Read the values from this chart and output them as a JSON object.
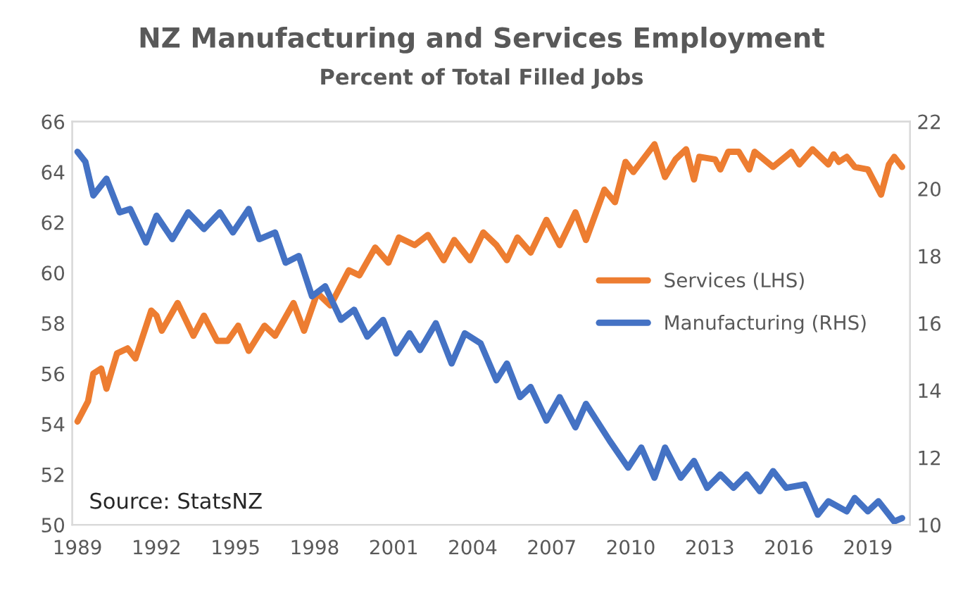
{
  "chart_data": {
    "type": "line",
    "title": "NZ Manufacturing and Services Employment",
    "subtitle": "Percent of Total Filled Jobs",
    "annotations": [
      "Source: StatsNZ"
    ],
    "xlim": [
      1988.8,
      2020.6
    ],
    "xticks": [
      1989,
      1992,
      1995,
      1998,
      2001,
      2004,
      2007,
      2010,
      2013,
      2016,
      2019
    ],
    "ylim": [
      50,
      66
    ],
    "yticks": [
      50,
      52,
      54,
      56,
      58,
      60,
      62,
      64,
      66
    ],
    "y2lim": [
      10,
      22
    ],
    "y2ticks": [
      10,
      12,
      14,
      16,
      18,
      20,
      22
    ],
    "legend": "right",
    "grid": false,
    "series": [
      {
        "name": "Services (LHS)",
        "color": "#ed7d31",
        "axis": "y",
        "x": [
          1989.0,
          1989.4,
          1989.6,
          1989.9,
          1990.1,
          1990.5,
          1990.9,
          1991.2,
          1991.8,
          1992.0,
          1992.2,
          1992.8,
          1993.4,
          1993.8,
          1994.3,
          1994.7,
          1995.1,
          1995.5,
          1996.1,
          1996.5,
          1997.2,
          1997.6,
          1998.1,
          1998.6,
          1999.3,
          1999.7,
          2000.3,
          2000.8,
          2001.2,
          2001.8,
          2002.3,
          2002.9,
          2003.3,
          2003.9,
          2004.4,
          2004.9,
          2005.3,
          2005.7,
          2006.2,
          2006.8,
          2007.3,
          2007.9,
          2008.3,
          2009.0,
          2009.4,
          2009.8,
          2010.1,
          2010.9,
          2011.3,
          2011.7,
          2012.1,
          2012.4,
          2012.6,
          2013.2,
          2013.4,
          2013.7,
          2014.1,
          2014.5,
          2014.7,
          2015.4,
          2016.1,
          2016.4,
          2016.9,
          2017.5,
          2017.7,
          2017.9,
          2018.2,
          2018.5,
          2019.0,
          2019.5,
          2019.8,
          2020.0,
          2020.3
        ],
        "values": [
          54.1,
          54.9,
          56.0,
          56.2,
          55.4,
          56.8,
          57.0,
          56.6,
          58.5,
          58.3,
          57.7,
          58.8,
          57.5,
          58.3,
          57.3,
          57.3,
          57.9,
          56.9,
          57.9,
          57.5,
          58.8,
          57.7,
          59.2,
          58.7,
          60.1,
          59.9,
          61.0,
          60.4,
          61.4,
          61.1,
          61.5,
          60.5,
          61.3,
          60.5,
          61.6,
          61.1,
          60.5,
          61.4,
          60.8,
          62.1,
          61.1,
          62.4,
          61.3,
          63.3,
          62.8,
          64.4,
          64.0,
          65.1,
          63.8,
          64.5,
          64.9,
          63.7,
          64.6,
          64.5,
          64.1,
          64.8,
          64.8,
          64.1,
          64.8,
          64.2,
          64.8,
          64.3,
          64.9,
          64.3,
          64.7,
          64.4,
          64.6,
          64.2,
          64.1,
          63.1,
          64.3,
          64.6,
          64.2
        ]
      },
      {
        "name": "Manufacturing (RHS)",
        "color": "#4472c4",
        "axis": "y2",
        "x": [
          1989.0,
          1989.3,
          1989.6,
          1990.1,
          1990.6,
          1991.0,
          1991.6,
          1992.0,
          1992.6,
          1993.2,
          1993.8,
          1994.4,
          1994.9,
          1995.5,
          1995.9,
          1996.5,
          1996.9,
          1997.4,
          1997.9,
          1998.4,
          1999.0,
          1999.5,
          2000.0,
          2000.6,
          2001.1,
          2001.6,
          2002.0,
          2002.6,
          2003.2,
          2003.7,
          2004.3,
          2004.9,
          2005.3,
          2005.8,
          2006.2,
          2006.8,
          2007.3,
          2007.9,
          2008.3,
          2009.2,
          2009.9,
          2010.4,
          2010.9,
          2011.3,
          2011.9,
          2012.4,
          2012.9,
          2013.4,
          2013.9,
          2014.4,
          2014.9,
          2015.4,
          2015.9,
          2016.6,
          2017.1,
          2017.5,
          2018.2,
          2018.5,
          2019.0,
          2019.4,
          2020.0,
          2020.3
        ],
        "values": [
          21.1,
          20.8,
          19.8,
          20.3,
          19.3,
          19.4,
          18.4,
          19.2,
          18.5,
          19.3,
          18.8,
          19.3,
          18.7,
          19.4,
          18.5,
          18.7,
          17.8,
          18.0,
          16.8,
          17.1,
          16.1,
          16.4,
          15.6,
          16.1,
          15.1,
          15.7,
          15.2,
          16.0,
          14.8,
          15.7,
          15.4,
          14.3,
          14.8,
          13.8,
          14.1,
          13.1,
          13.8,
          12.9,
          13.6,
          12.5,
          11.7,
          12.3,
          11.4,
          12.3,
          11.4,
          11.9,
          11.1,
          11.5,
          11.1,
          11.5,
          11.0,
          11.6,
          11.1,
          11.2,
          10.3,
          10.7,
          10.4,
          10.8,
          10.4,
          10.7,
          10.1,
          10.2
        ]
      }
    ]
  }
}
